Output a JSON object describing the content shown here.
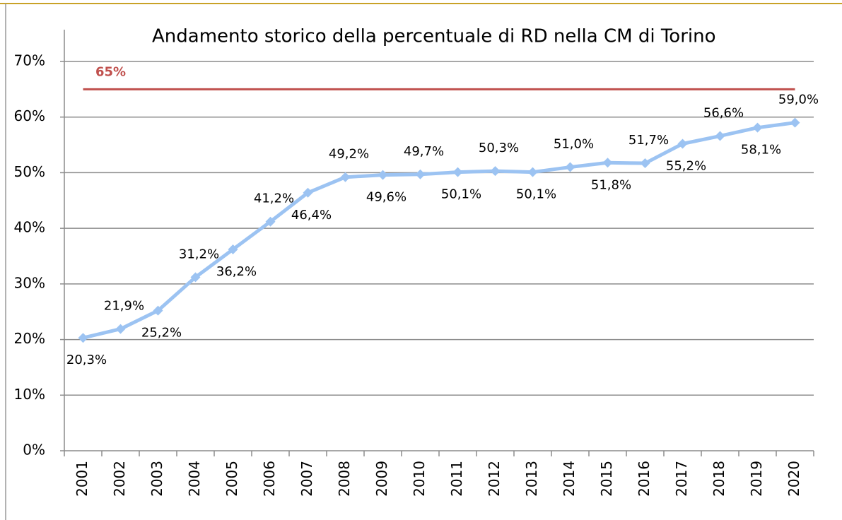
{
  "chart_data": {
    "type": "line",
    "title": "Andamento storico della percentuale di RD nella CM di Torino",
    "categories": [
      "2001",
      "2002",
      "2003",
      "2004",
      "2005",
      "2006",
      "2007",
      "2008",
      "2009",
      "2010",
      "2011",
      "2012",
      "2013",
      "2014",
      "2015",
      "2016",
      "2017",
      "2018",
      "2019",
      "2020"
    ],
    "values": [
      20.3,
      21.9,
      25.2,
      31.2,
      36.2,
      41.2,
      46.4,
      49.2,
      49.6,
      49.7,
      50.1,
      50.3,
      50.1,
      51.0,
      51.8,
      51.7,
      55.2,
      56.6,
      58.1,
      59.0
    ],
    "value_labels": [
      "20,3%",
      "21,9%",
      "25,2%",
      "31,2%",
      "36,2%",
      "41,2%",
      "46,4%",
      "49,2%",
      "49,6%",
      "49,7%",
      "50,1%",
      "50,3%",
      "50,1%",
      "51,0%",
      "51,8%",
      "51,7%",
      "55,2%",
      "56,6%",
      "58,1%",
      "59,0%"
    ],
    "color": "#9cc3f2",
    "reference_line": {
      "value": 65,
      "label": "65%",
      "color": "#c0504d"
    },
    "ylim": [
      0,
      70
    ],
    "yticks": [
      {
        "value": 0,
        "label": "0%"
      },
      {
        "value": 10,
        "label": "10%"
      },
      {
        "value": 20,
        "label": "20%"
      },
      {
        "value": 30,
        "label": "30%"
      },
      {
        "value": 40,
        "label": "40%"
      },
      {
        "value": 50,
        "label": "50%"
      },
      {
        "value": 60,
        "label": "60%"
      },
      {
        "value": 70,
        "label": "70%"
      }
    ],
    "grid": true
  }
}
